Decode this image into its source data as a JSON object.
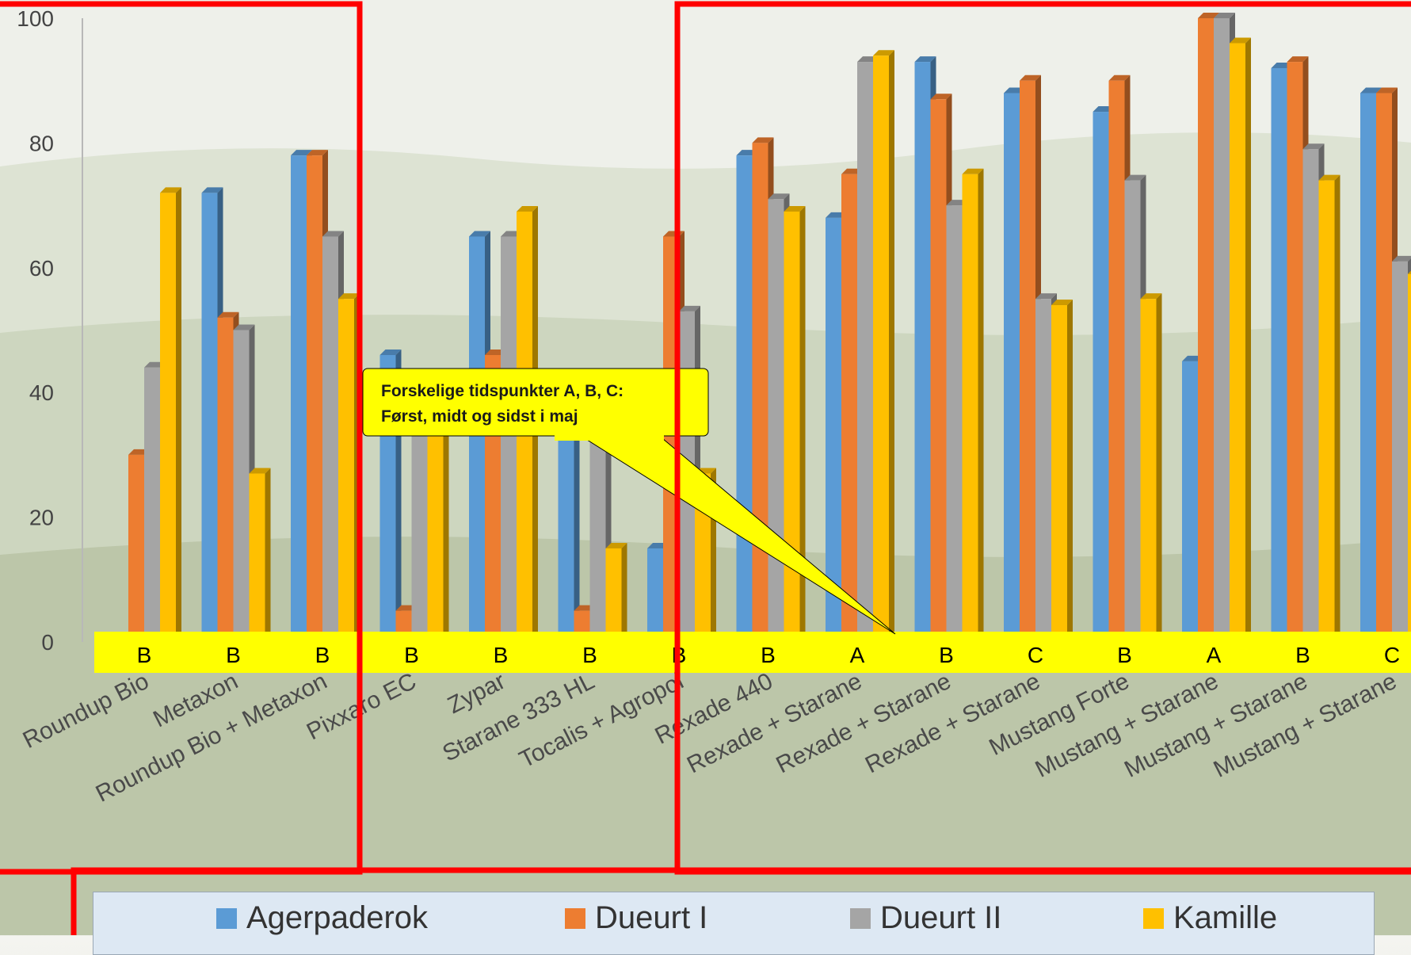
{
  "chart_data": {
    "type": "bar",
    "ylim": [
      0,
      100
    ],
    "yticks": [
      "0",
      "20",
      "40",
      "60",
      "80",
      "100"
    ],
    "categories": [
      "Roundup Bio",
      "Metaxon",
      "Roundup Bio + Metaxon",
      "Pixxaro EC",
      "Zypar",
      "Starane 333 HL",
      "Tocalis + Agropol",
      "Rexade 440",
      "Rexade + Starane",
      "Rexade + Starane",
      "Rexade + Starane",
      "Mustang Forte",
      "Mustang + Starane",
      "Mustang + Starane",
      "Mustang + Starane"
    ],
    "timing": [
      "B",
      "B",
      "B",
      "B",
      "B",
      "B",
      "B",
      "B",
      "A",
      "B",
      "C",
      "B",
      "A",
      "B",
      "C"
    ],
    "series": [
      {
        "name": "Agerpaderok",
        "color": "#5b9bd5",
        "values": [
          0,
          72,
          78,
          46,
          65,
          40,
          15,
          78,
          68,
          93,
          88,
          85,
          45,
          92,
          88
        ]
      },
      {
        "name": "Dueurt I",
        "color": "#ed7d31",
        "values": [
          30,
          52,
          78,
          5,
          46,
          5,
          65,
          80,
          75,
          87,
          90,
          90,
          100,
          93,
          88
        ]
      },
      {
        "name": "Dueurt II",
        "color": "#a5a5a5",
        "values": [
          44,
          50,
          65,
          40,
          65,
          40,
          53,
          71,
          93,
          70,
          55,
          74,
          100,
          79,
          61
        ]
      },
      {
        "name": "Kamille",
        "color": "#ffc000",
        "values": [
          72,
          27,
          55,
          35,
          69,
          15,
          27,
          69,
          94,
          75,
          54,
          55,
          96,
          74,
          59
        ]
      }
    ],
    "annotation": "Forskelige tidspunkter A, B, C:\nFørst, midt og sidst i maj",
    "legend_position": "bottom"
  },
  "legend": {
    "items": [
      {
        "label": "Agerpaderok",
        "color": "#5b9bd5"
      },
      {
        "label": "Dueurt I",
        "color": "#ed7d31"
      },
      {
        "label": "Dueurt II",
        "color": "#a5a5a5"
      },
      {
        "label": "Kamille",
        "color": "#ffc000"
      }
    ]
  },
  "highlight_color": "#ff0000",
  "timing_band_color": "#ffff00"
}
